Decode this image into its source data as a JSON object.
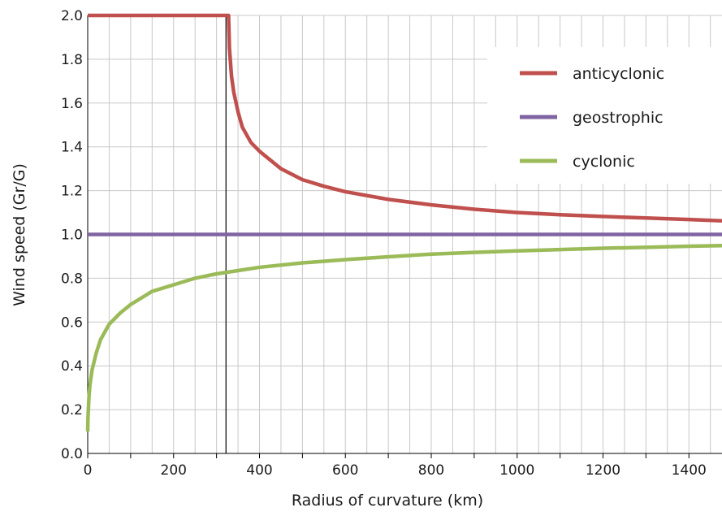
{
  "chart_data": {
    "type": "line",
    "title": "",
    "xlabel": "Radius of curvature (km)",
    "ylabel": "Wind speed (Gr/G)",
    "xlim": [
      0,
      1480
    ],
    "ylim": [
      0.0,
      2.0
    ],
    "x_ticks": [
      "0",
      "200",
      "400",
      "600",
      "800",
      "1000",
      "1200",
      "1400"
    ],
    "y_ticks": [
      "0.0",
      "0.2",
      "0.4",
      "0.6",
      "0.8",
      "1.0",
      "1.2",
      "1.4",
      "1.6",
      "1.8",
      "2.0"
    ],
    "grid": true,
    "legend_position": "top-right",
    "vertical_marker_x": 322,
    "series": [
      {
        "name": "anticyclonic",
        "color": "#c0504d",
        "points": [
          [
            0,
            2.0
          ],
          [
            322,
            2.0
          ],
          [
            328,
            2.0
          ],
          [
            330,
            1.85
          ],
          [
            335,
            1.72
          ],
          [
            340,
            1.65
          ],
          [
            350,
            1.56
          ],
          [
            360,
            1.49
          ],
          [
            380,
            1.42
          ],
          [
            400,
            1.38
          ],
          [
            450,
            1.3
          ],
          [
            500,
            1.25
          ],
          [
            550,
            1.22
          ],
          [
            600,
            1.195
          ],
          [
            700,
            1.16
          ],
          [
            800,
            1.135
          ],
          [
            900,
            1.115
          ],
          [
            1000,
            1.1
          ],
          [
            1100,
            1.09
          ],
          [
            1200,
            1.082
          ],
          [
            1300,
            1.075
          ],
          [
            1400,
            1.068
          ],
          [
            1480,
            1.062
          ]
        ]
      },
      {
        "name": "geostrophic",
        "color": "#8064a2",
        "points": [
          [
            0,
            1.0
          ],
          [
            1480,
            1.0
          ]
        ]
      },
      {
        "name": "cyclonic",
        "color": "#9bbb59",
        "points": [
          [
            0,
            0.1
          ],
          [
            0.5,
            0.15
          ],
          [
            1,
            0.18
          ],
          [
            3,
            0.26
          ],
          [
            5,
            0.31
          ],
          [
            10,
            0.38
          ],
          [
            20,
            0.46
          ],
          [
            30,
            0.52
          ],
          [
            50,
            0.59
          ],
          [
            75,
            0.64
          ],
          [
            100,
            0.68
          ],
          [
            150,
            0.74
          ],
          [
            200,
            0.77
          ],
          [
            250,
            0.8
          ],
          [
            300,
            0.82
          ],
          [
            350,
            0.835
          ],
          [
            400,
            0.85
          ],
          [
            500,
            0.87
          ],
          [
            600,
            0.885
          ],
          [
            700,
            0.898
          ],
          [
            800,
            0.91
          ],
          [
            900,
            0.918
          ],
          [
            1000,
            0.925
          ],
          [
            1100,
            0.931
          ],
          [
            1200,
            0.937
          ],
          [
            1300,
            0.941
          ],
          [
            1400,
            0.946
          ],
          [
            1480,
            0.949
          ]
        ]
      }
    ]
  }
}
